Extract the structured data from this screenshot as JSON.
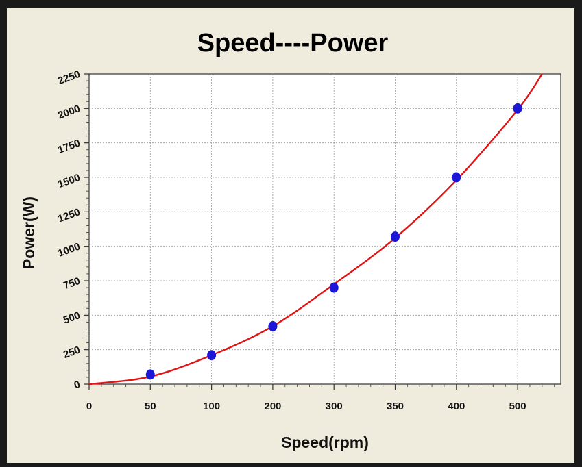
{
  "colors": {
    "frame": "#1a1a1a",
    "panel": "#efebdd",
    "plot_background": "#ffffff",
    "grid": "#9a9a9a",
    "curve": "#e01414",
    "points": "#1c17d8"
  },
  "chart_data": {
    "type": "scatter",
    "title": "Speed----Power",
    "xlabel": "Speed(rpm)",
    "ylabel": "Power(W)",
    "x_tick_labels": [
      "0",
      "50",
      "100",
      "200",
      "300",
      "350",
      "400",
      "500"
    ],
    "y_tick_labels": [
      "0",
      "250",
      "500",
      "750",
      "1000",
      "1250",
      "1500",
      "1750",
      "2000",
      "2250"
    ],
    "ylim": [
      0,
      2250
    ],
    "grid": true,
    "series": [
      {
        "kind": "points",
        "x": [
          "50",
          "100",
          "200",
          "300",
          "350",
          "400",
          "500"
        ],
        "y": [
          70,
          210,
          420,
          700,
          1070,
          1500,
          2000
        ]
      },
      {
        "kind": "fit-curve",
        "x_start": "0",
        "x_end_beyond_last_tick": 0.4,
        "y_at_ticks": [
          0,
          55,
          210,
          420,
          725,
          1060,
          1480,
          1990
        ],
        "y_end": 2250
      }
    ]
  }
}
